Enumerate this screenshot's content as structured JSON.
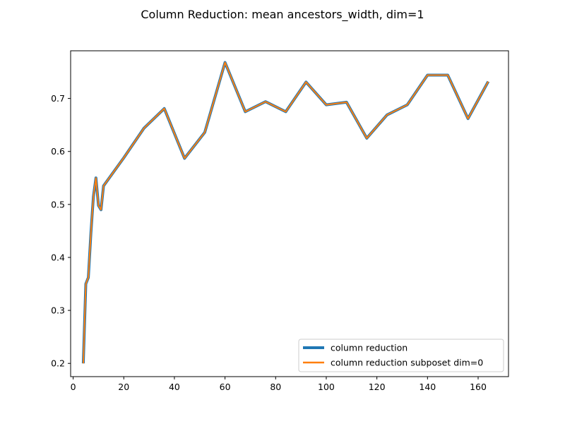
{
  "chart_data": {
    "type": "line",
    "title": "Column Reduction: mean ancestors_width, dim=1",
    "xlabel": "",
    "ylabel": "",
    "xlim": [
      -1,
      172
    ],
    "ylim": [
      0.175,
      0.79
    ],
    "xticks": [
      0,
      20,
      40,
      60,
      80,
      100,
      120,
      140,
      160
    ],
    "yticks": [
      0.2,
      0.3,
      0.4,
      0.5,
      0.6,
      0.7
    ],
    "xtick_labels": [
      "0",
      "20",
      "40",
      "60",
      "80",
      "100",
      "120",
      "140",
      "160"
    ],
    "ytick_labels": [
      "0.2",
      "0.3",
      "0.4",
      "0.5",
      "0.6",
      "0.7"
    ],
    "grid": false,
    "legend_position": "lower-right",
    "x": [
      4,
      5,
      6,
      7,
      8,
      9,
      10,
      11,
      12,
      20,
      28,
      36,
      44,
      52,
      60,
      68,
      76,
      84,
      92,
      100,
      108,
      116,
      124,
      132,
      140,
      148,
      156,
      164
    ],
    "series": [
      {
        "name": "column reduction",
        "color": "#1f77b4",
        "values": [
          0.2,
          0.35,
          0.362,
          0.445,
          0.515,
          0.55,
          0.498,
          0.49,
          0.535,
          0.588,
          0.644,
          0.681,
          0.587,
          0.636,
          0.768,
          0.675,
          0.694,
          0.675,
          0.731,
          0.688,
          0.693,
          0.625,
          0.669,
          0.688,
          0.744,
          0.744,
          0.662,
          0.732
        ]
      },
      {
        "name": "column reduction subposet dim=0",
        "color": "#ff7f0e",
        "values": [
          0.2,
          0.35,
          0.362,
          0.445,
          0.515,
          0.55,
          0.498,
          0.49,
          0.535,
          0.588,
          0.644,
          0.681,
          0.587,
          0.636,
          0.768,
          0.675,
          0.694,
          0.675,
          0.731,
          0.688,
          0.693,
          0.625,
          0.669,
          0.688,
          0.744,
          0.744,
          0.662,
          0.732
        ]
      }
    ]
  }
}
